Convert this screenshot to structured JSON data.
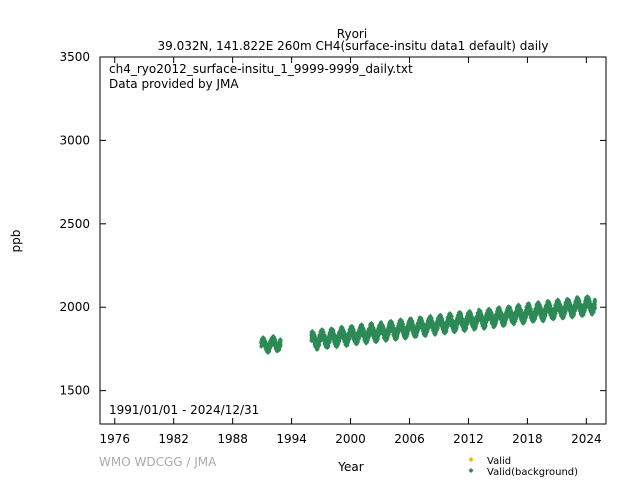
{
  "chart_data": {
    "type": "scatter",
    "title": "Ryori",
    "subtitle": "39.032N, 141.822E 260m    CH4(surface-insitu data1 default) daily",
    "xlabel": "Year",
    "ylabel": "ppb",
    "xlim": [
      1974.5,
      2026.0
    ],
    "ylim": [
      1300,
      3500
    ],
    "x_ticks": [
      "1976",
      "1982",
      "1988",
      "1994",
      "2000",
      "2006",
      "2012",
      "2018",
      "2024"
    ],
    "y_ticks": [
      "1500",
      "2000",
      "2500",
      "3000",
      "3500"
    ],
    "annotations": {
      "file_name": "ch4_ryo2012_surface-insitu_1_9999-9999_daily.txt",
      "provider": "Data provided by JMA",
      "period": "1991/01/01 - 2024/12/31",
      "credit": "WMO WDCGG / JMA"
    },
    "legend": {
      "position": "bottom-right",
      "entries": [
        {
          "label": "Valid",
          "color": "#e6b800"
        },
        {
          "label": "Valid(background)",
          "color": "#2e8b57"
        }
      ]
    },
    "series": [
      {
        "name": "Valid(background)",
        "color": "#2e8b57",
        "segments": [
          {
            "start": 1990.9,
            "end": 1992.9,
            "base_start": 1770,
            "base_end": 1785,
            "amplitude": 45
          },
          {
            "start": 1996.0,
            "end": 2024.9,
            "base_start": 1800,
            "base_end": 2015,
            "amplitude": 55
          }
        ]
      }
    ]
  }
}
